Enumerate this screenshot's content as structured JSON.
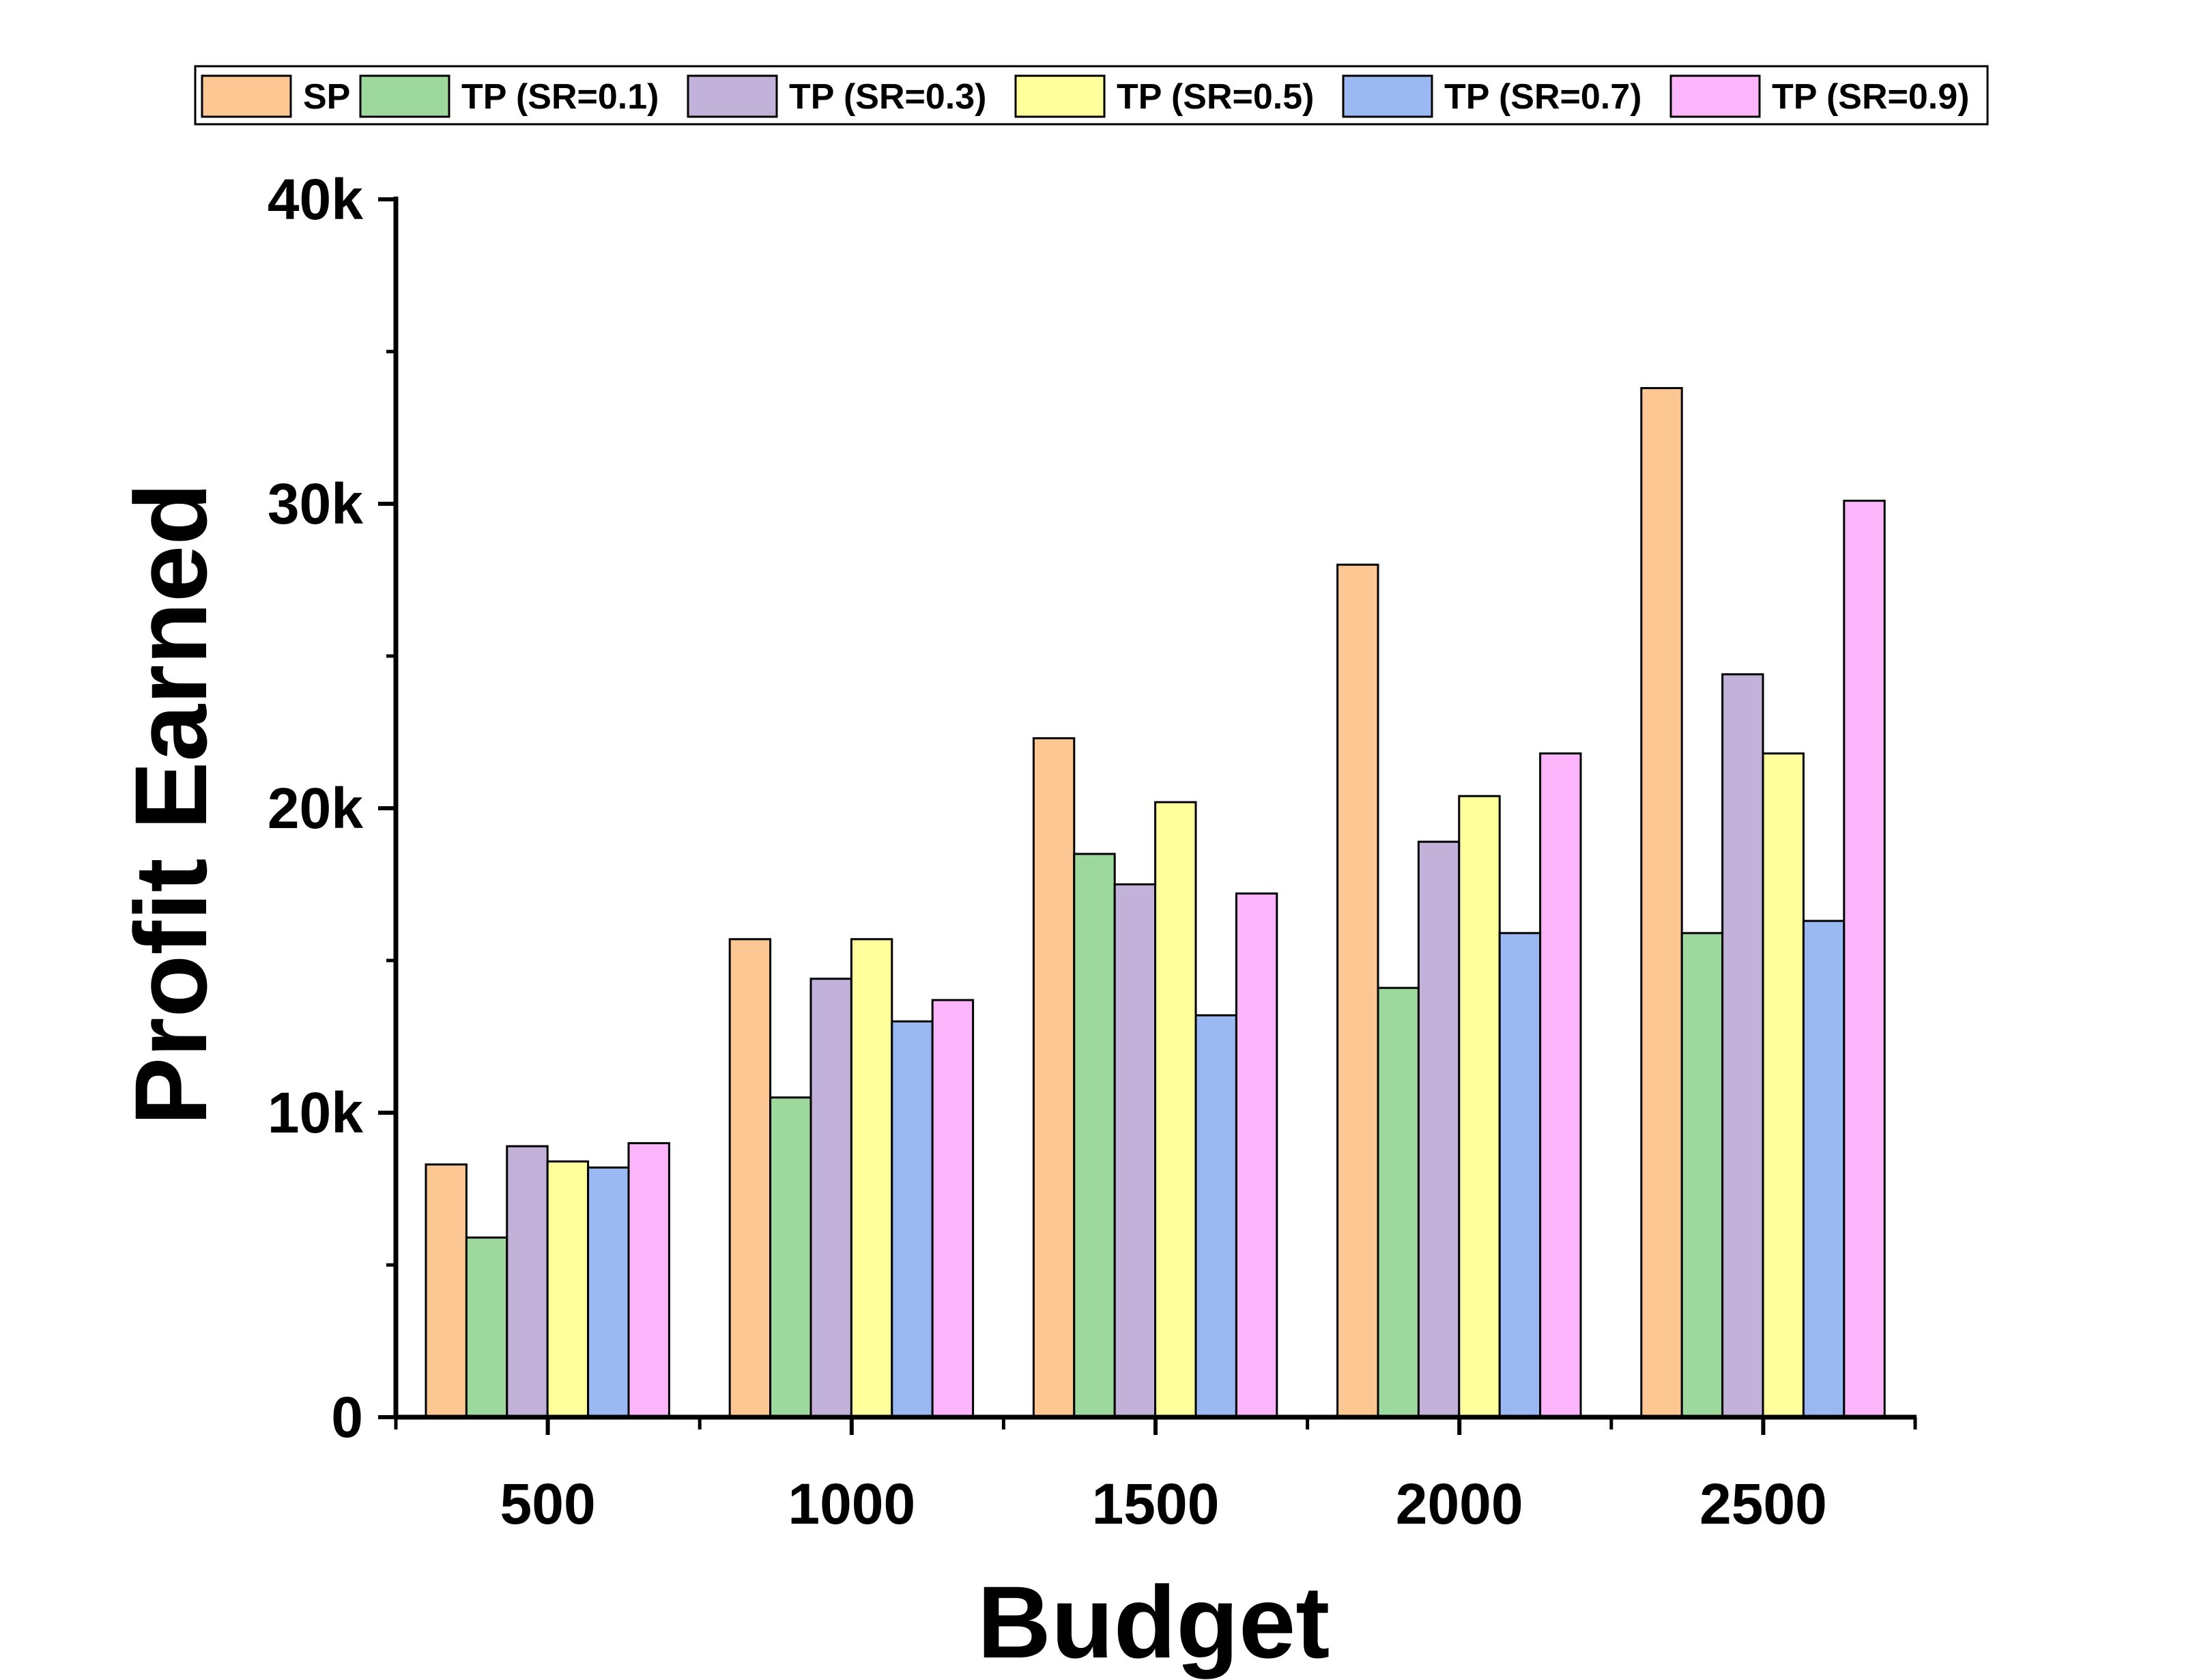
{
  "chart_data": {
    "type": "bar",
    "title": "",
    "xlabel": "Budget",
    "ylabel": "Profit Earned",
    "categories": [
      "500",
      "1000",
      "1500",
      "2000",
      "2500"
    ],
    "ylim": [
      0,
      40000
    ],
    "yticks": [
      {
        "value": 0,
        "label": "0"
      },
      {
        "value": 10000,
        "label": "10k"
      },
      {
        "value": 20000,
        "label": "20k"
      },
      {
        "value": 30000,
        "label": "30k"
      },
      {
        "value": 40000,
        "label": "40k"
      }
    ],
    "grid": false,
    "legend_position": "top",
    "series": [
      {
        "name": "SP",
        "color": "#FDC793",
        "values": [
          8300,
          15700,
          22300,
          28000,
          33800
        ]
      },
      {
        "name": "TP (SR=0.1)",
        "color": "#9DD99C",
        "values": [
          5900,
          10500,
          18500,
          14100,
          15900
        ]
      },
      {
        "name": "TP (SR=0.3)",
        "color": "#C2B1D8",
        "values": [
          8900,
          14400,
          17500,
          18900,
          24400
        ]
      },
      {
        "name": "TP (SR=0.5)",
        "color": "#FFFF9C",
        "values": [
          8400,
          15700,
          20200,
          20400,
          21800
        ]
      },
      {
        "name": "TP (SR=0.7)",
        "color": "#9AB9F2",
        "values": [
          8200,
          13000,
          13200,
          15900,
          16300
        ]
      },
      {
        "name": "TP (SR=0.9)",
        "color": "#FCB4FA",
        "values": [
          9000,
          13700,
          17200,
          21800,
          30100
        ]
      }
    ]
  }
}
